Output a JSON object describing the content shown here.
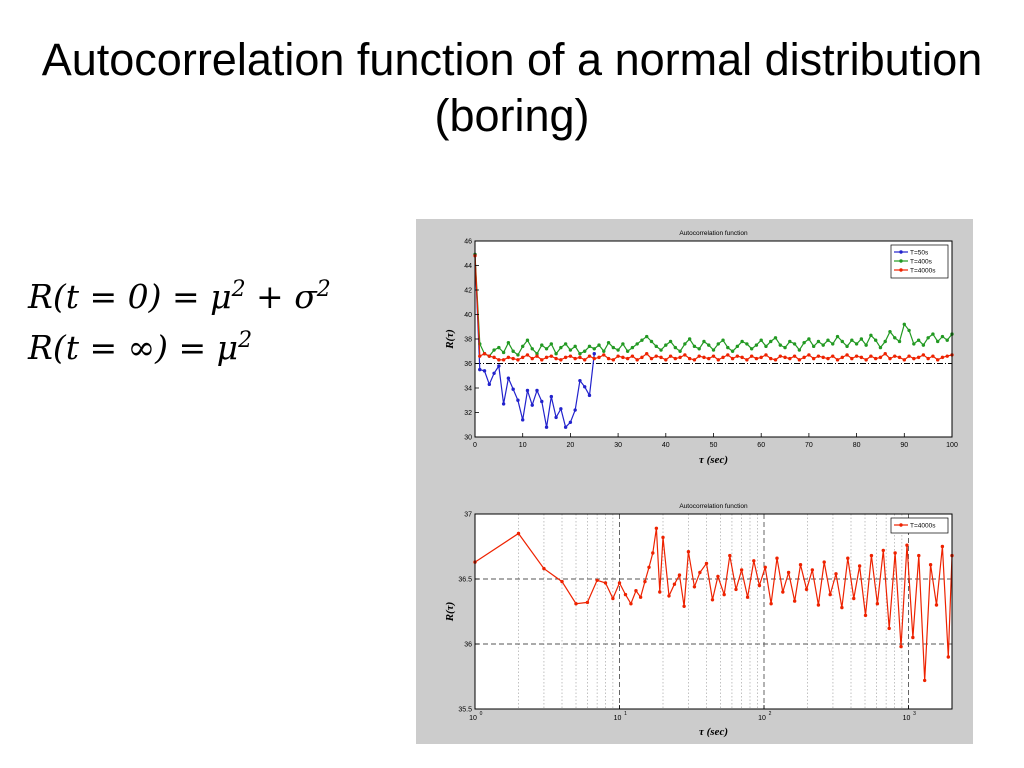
{
  "slide": {
    "title": "Autocorrelation function of a normal distribution (boring)",
    "formula_line1_lhs": "R(t = 0) = μ",
    "formula_line1_exp1": "2",
    "formula_line1_mid": " + σ",
    "formula_line1_exp2": "2",
    "formula_line2_lhs": "R(t = ∞) = μ",
    "formula_line2_exp": "2"
  },
  "chart_data": [
    {
      "type": "line",
      "title": "Autocorrelation function",
      "xlabel": "τ (sec)",
      "ylabel": "R(τ)",
      "xlim": [
        0,
        100
      ],
      "ylim": [
        30,
        46
      ],
      "xticks": [
        0,
        10,
        20,
        30,
        40,
        50,
        60,
        70,
        80,
        90,
        100
      ],
      "yticks": [
        30,
        32,
        34,
        36,
        38,
        40,
        42,
        44,
        46
      ],
      "grid": false,
      "legend_position": "top-right",
      "reference_line": {
        "y": 36,
        "style": "dash-dot",
        "color": "#000000"
      },
      "series": [
        {
          "name": "T=50s",
          "color": "#2222cc",
          "x": [
            0,
            1,
            2,
            3,
            4,
            5,
            6,
            7,
            8,
            9,
            10,
            11,
            12,
            13,
            14,
            15,
            16,
            17,
            18,
            19,
            20,
            21,
            22,
            23,
            24,
            25
          ],
          "y": [
            44.9,
            35.5,
            35.4,
            34.3,
            35.2,
            35.8,
            32.7,
            34.8,
            33.9,
            33.0,
            31.4,
            33.8,
            32.6,
            33.8,
            32.9,
            30.8,
            33.3,
            31.6,
            32.3,
            30.8,
            31.2,
            32.2,
            34.6,
            34.1,
            33.4,
            36.8
          ]
        },
        {
          "name": "T=400s",
          "color": "#229922",
          "x": [
            0,
            1,
            2,
            3,
            4,
            5,
            6,
            7,
            8,
            9,
            10,
            11,
            12,
            13,
            14,
            15,
            16,
            17,
            18,
            19,
            20,
            21,
            22,
            23,
            24,
            25,
            26,
            27,
            28,
            29,
            30,
            31,
            32,
            33,
            34,
            35,
            36,
            37,
            38,
            39,
            40,
            41,
            42,
            43,
            44,
            45,
            46,
            47,
            48,
            49,
            50,
            51,
            52,
            53,
            54,
            55,
            56,
            57,
            58,
            59,
            60,
            61,
            62,
            63,
            64,
            65,
            66,
            67,
            68,
            69,
            70,
            71,
            72,
            73,
            74,
            75,
            76,
            77,
            78,
            79,
            80,
            81,
            82,
            83,
            84,
            85,
            86,
            87,
            88,
            89,
            90,
            91,
            92,
            93,
            94,
            95,
            96,
            97,
            98,
            99,
            100
          ],
          "y": [
            44.9,
            37.6,
            36.8,
            36.6,
            37.1,
            37.3,
            36.9,
            37.7,
            37.0,
            36.7,
            37.4,
            37.9,
            37.2,
            36.8,
            37.5,
            37.2,
            37.6,
            36.8,
            37.3,
            37.6,
            37.1,
            37.4,
            36.8,
            37.0,
            37.4,
            37.2,
            37.5,
            37.0,
            37.7,
            37.3,
            37.1,
            37.6,
            37.0,
            37.3,
            37.6,
            37.9,
            38.2,
            37.8,
            37.4,
            37.1,
            37.5,
            37.8,
            37.3,
            37.0,
            37.6,
            38.0,
            37.4,
            37.2,
            37.8,
            37.5,
            37.1,
            37.6,
            37.9,
            37.3,
            37.0,
            37.4,
            37.8,
            37.6,
            37.2,
            37.5,
            37.9,
            37.4,
            37.8,
            38.1,
            37.5,
            37.3,
            37.8,
            37.6,
            37.1,
            37.7,
            38.0,
            37.4,
            37.8,
            37.5,
            37.9,
            37.6,
            38.2,
            37.8,
            37.4,
            37.9,
            37.6,
            38.0,
            37.5,
            38.3,
            37.9,
            37.3,
            37.8,
            38.6,
            38.1,
            37.8,
            39.2,
            38.7,
            37.6,
            37.9,
            37.5,
            38.1,
            38.4,
            37.8,
            38.2,
            37.9,
            38.4
          ]
        },
        {
          "name": "T=4000s",
          "color": "#ee2200",
          "x": [
            0,
            1,
            2,
            3,
            4,
            5,
            6,
            7,
            8,
            9,
            10,
            11,
            12,
            13,
            14,
            15,
            16,
            17,
            18,
            19,
            20,
            21,
            22,
            23,
            24,
            25,
            26,
            27,
            28,
            29,
            30,
            31,
            32,
            33,
            34,
            35,
            36,
            37,
            38,
            39,
            40,
            41,
            42,
            43,
            44,
            45,
            46,
            47,
            48,
            49,
            50,
            51,
            52,
            53,
            54,
            55,
            56,
            57,
            58,
            59,
            60,
            61,
            62,
            63,
            64,
            65,
            66,
            67,
            68,
            69,
            70,
            71,
            72,
            73,
            74,
            75,
            76,
            77,
            78,
            79,
            80,
            81,
            82,
            83,
            84,
            85,
            86,
            87,
            88,
            89,
            90,
            91,
            92,
            93,
            94,
            95,
            96,
            97,
            98,
            99,
            100
          ],
          "y": [
            44.8,
            36.6,
            36.8,
            36.6,
            36.5,
            36.3,
            36.3,
            36.5,
            36.4,
            36.3,
            36.5,
            36.7,
            36.4,
            36.6,
            36.3,
            36.5,
            36.6,
            36.4,
            36.3,
            36.5,
            36.6,
            36.4,
            36.5,
            36.3,
            36.6,
            36.4,
            36.5,
            36.7,
            36.4,
            36.3,
            36.6,
            36.5,
            36.4,
            36.6,
            36.3,
            36.5,
            36.8,
            36.4,
            36.6,
            36.5,
            36.3,
            36.6,
            36.4,
            36.5,
            36.7,
            36.4,
            36.3,
            36.6,
            36.5,
            36.4,
            36.6,
            36.3,
            36.5,
            36.7,
            36.4,
            36.6,
            36.5,
            36.3,
            36.6,
            36.4,
            36.5,
            36.7,
            36.4,
            36.3,
            36.6,
            36.5,
            36.4,
            36.6,
            36.3,
            36.5,
            36.7,
            36.4,
            36.6,
            36.5,
            36.4,
            36.6,
            36.3,
            36.5,
            36.7,
            36.4,
            36.6,
            36.5,
            36.3,
            36.6,
            36.4,
            36.5,
            36.8,
            36.4,
            36.6,
            36.5,
            36.3,
            36.6,
            36.4,
            36.5,
            36.7,
            36.4,
            36.6,
            36.3,
            36.5,
            36.6,
            36.7
          ]
        }
      ]
    },
    {
      "type": "line",
      "title": "Autocorrelation function",
      "xlabel": "τ (sec)",
      "ylabel": "R(τ)",
      "xscale": "log",
      "xlim": [
        1,
        2000
      ],
      "ylim": [
        35.5,
        37
      ],
      "xticks": [
        1,
        10,
        100,
        1000
      ],
      "xticklabels": [
        [
          "10",
          "0"
        ],
        [
          "10",
          "1"
        ],
        [
          "10",
          "2"
        ],
        [
          "10",
          "3"
        ]
      ],
      "yticks": [
        35.5,
        36,
        36.5,
        37
      ],
      "yticklabels": [
        "35.5",
        "36",
        "36.5",
        "37"
      ],
      "grid": true,
      "legend_position": "top-right",
      "series": [
        {
          "name": "T=4000s",
          "color": "#ee2200",
          "x": [
            1,
            2,
            3,
            4,
            5,
            6,
            7,
            8,
            9,
            10,
            11,
            12,
            13,
            14,
            15,
            16,
            17,
            18,
            19,
            20,
            22,
            24,
            26,
            28,
            30,
            33,
            36,
            40,
            44,
            48,
            53,
            58,
            64,
            70,
            77,
            85,
            93,
            102,
            112,
            123,
            135,
            148,
            163,
            179,
            197,
            216,
            238,
            261,
            287,
            315,
            346,
            380,
            418,
            459,
            504,
            554,
            609,
            669,
            735,
            808,
            888,
            976,
            1072,
            1178,
            1294,
            1422,
            1562,
            1716,
            1886,
            2000
          ],
          "y": [
            36.63,
            36.85,
            36.58,
            36.48,
            36.31,
            36.32,
            36.49,
            36.47,
            36.35,
            36.47,
            36.38,
            36.31,
            36.41,
            36.36,
            36.48,
            36.59,
            36.7,
            36.89,
            36.4,
            36.82,
            36.37,
            36.46,
            36.53,
            36.29,
            36.71,
            36.44,
            36.55,
            36.62,
            36.34,
            36.52,
            36.38,
            36.68,
            36.42,
            36.57,
            36.36,
            36.64,
            36.45,
            36.59,
            36.31,
            36.66,
            36.4,
            36.55,
            36.33,
            36.61,
            36.42,
            36.57,
            36.3,
            36.63,
            36.38,
            36.54,
            36.28,
            36.66,
            36.35,
            36.6,
            36.22,
            36.68,
            36.31,
            36.72,
            36.12,
            36.7,
            35.98,
            36.76,
            36.05,
            36.68,
            35.72,
            36.61,
            36.3,
            36.75,
            35.9,
            36.68
          ]
        }
      ]
    }
  ]
}
